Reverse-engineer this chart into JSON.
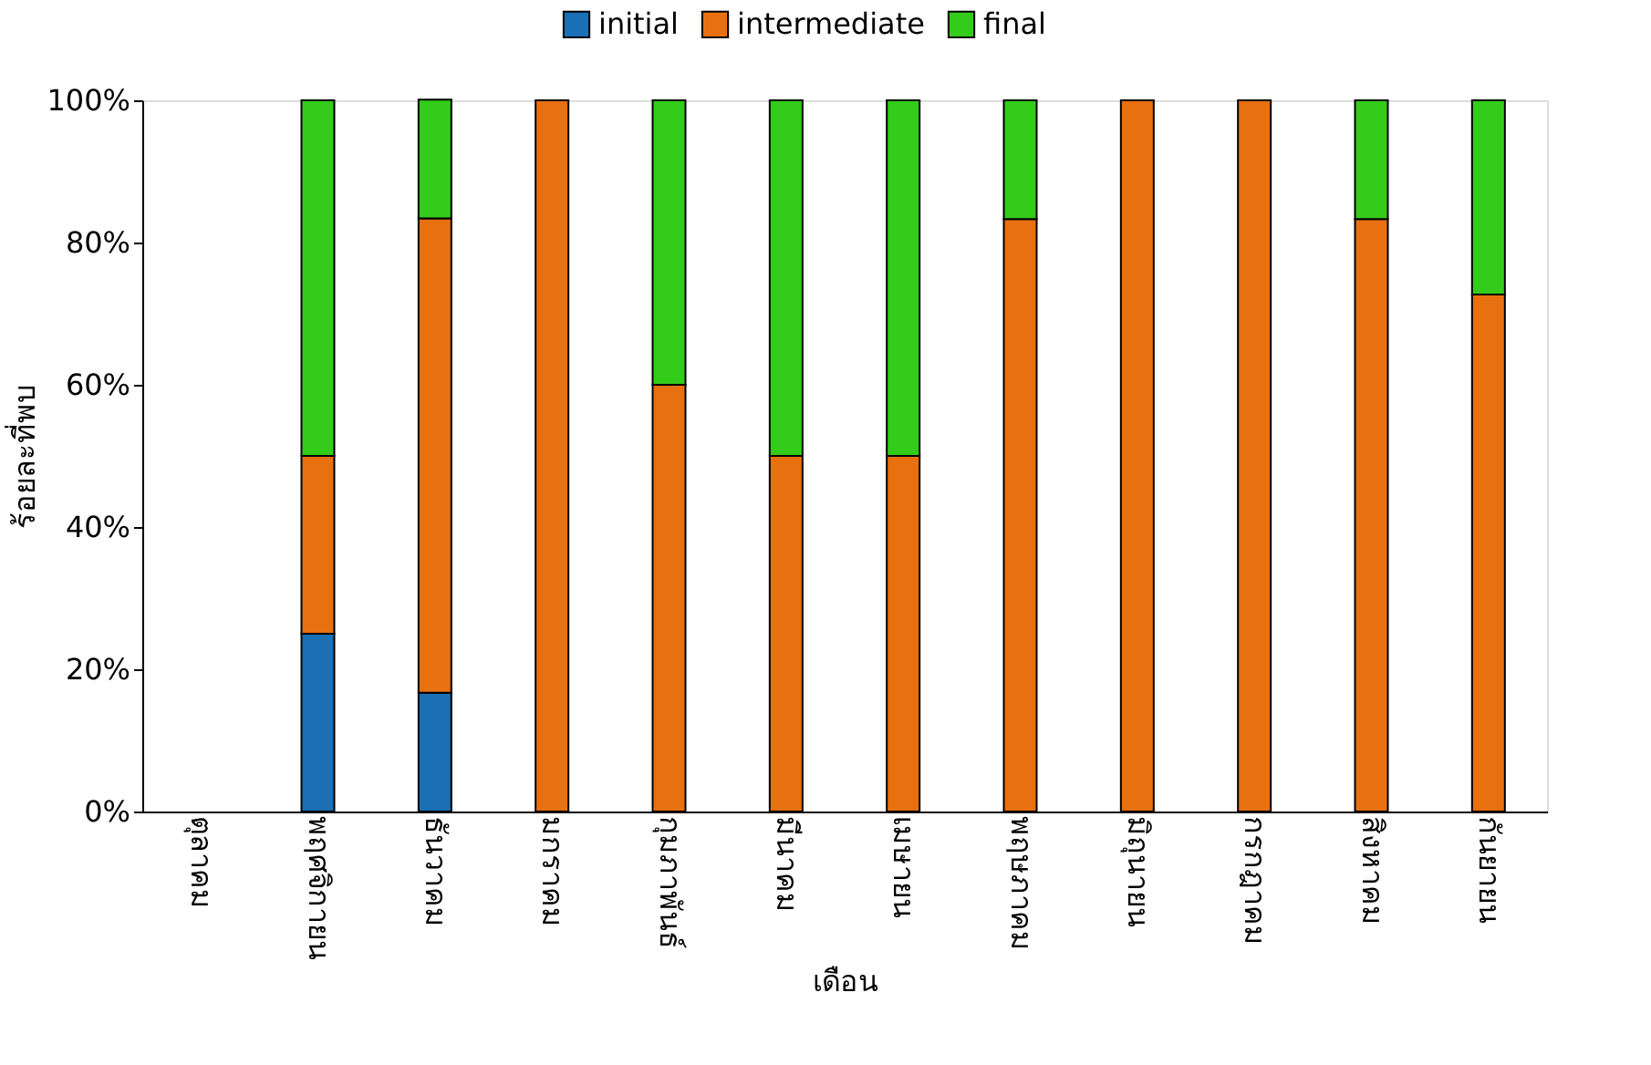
{
  "chart_data": {
    "type": "bar",
    "stacked": true,
    "xlabel": "เดือน",
    "ylabel": "ร้อยละที่พบ",
    "categories": [
      "ตุลาคม",
      "พฤศจิกายน",
      "ธันวาคม",
      "มกราคม",
      "กุมภาพันธ์",
      "มีนาคม",
      "เมษายน",
      "พฤษภาคม",
      "มิถุนายน",
      "กรกฎาคม",
      "สิงหาคม",
      "กันยายน"
    ],
    "series": [
      {
        "name": "initial",
        "color": "#1a6fb5",
        "values": [
          null,
          25,
          16.7,
          null,
          null,
          null,
          null,
          null,
          null,
          null,
          null,
          null
        ]
      },
      {
        "name": "intermediate",
        "color": "#e8700f",
        "values": [
          null,
          25,
          66.7,
          100,
          60,
          50,
          50,
          83.3,
          100,
          100,
          83.3,
          72.7
        ]
      },
      {
        "name": "final",
        "color": "#33cc1a",
        "values": [
          null,
          50,
          16.7,
          null,
          40,
          50,
          50,
          16.7,
          null,
          null,
          16.7,
          27.3
        ]
      }
    ],
    "ylim": [
      0,
      100
    ],
    "yticks": [
      {
        "value": 0,
        "label": "0%"
      },
      {
        "value": 20,
        "label": "20%"
      },
      {
        "value": 40,
        "label": "40%"
      },
      {
        "value": 60,
        "label": "60%"
      },
      {
        "value": 80,
        "label": "80%"
      },
      {
        "value": 100,
        "label": "100%"
      }
    ],
    "grid": false,
    "legend": "top"
  }
}
